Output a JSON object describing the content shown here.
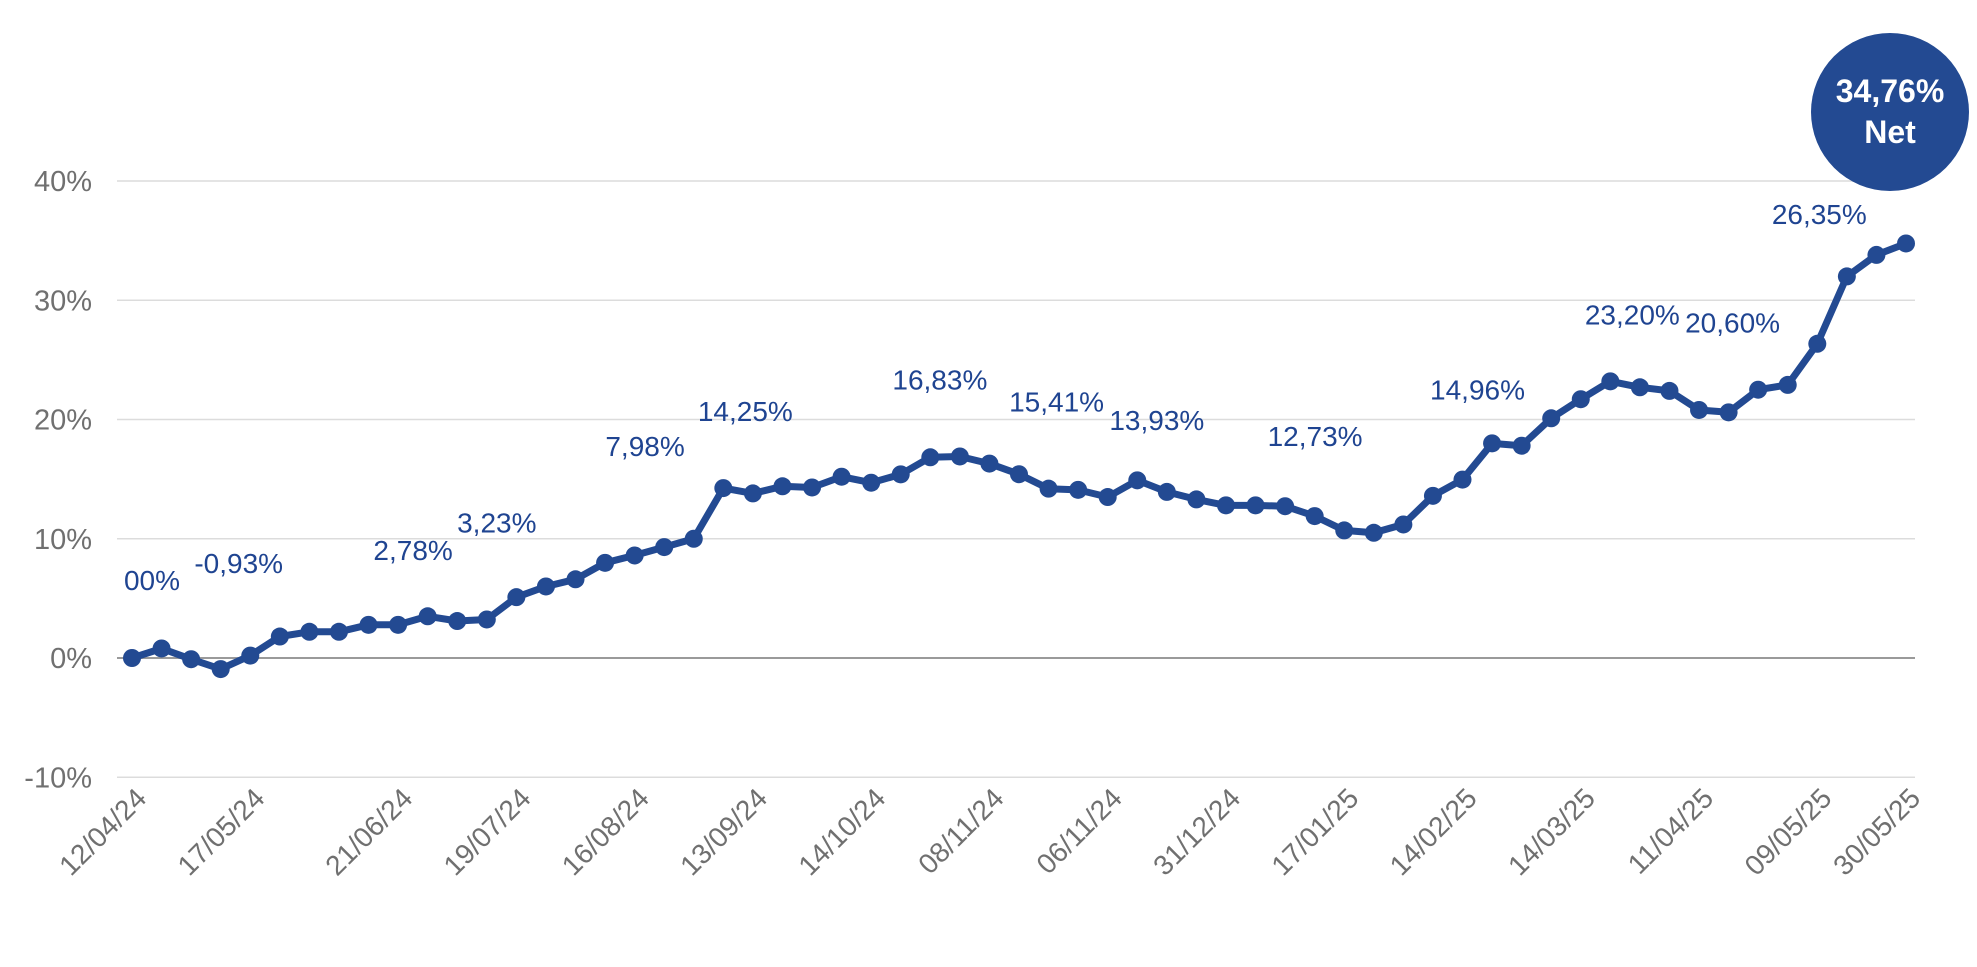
{
  "chart_data": {
    "type": "line",
    "ylim": [
      -10,
      40
    ],
    "y_ticks": [
      40,
      30,
      20,
      10,
      0,
      -10
    ],
    "y_tick_labels": [
      "40%",
      "30%",
      "20%",
      "10%",
      "0%",
      "-10%"
    ],
    "grid": true,
    "colors": {
      "line": "#234a92",
      "grid": "#dcdcdc",
      "zero_line": "#9a9a9a",
      "badge": "#234a92",
      "tick_text": "#707070",
      "label_text": "#1f4491"
    },
    "x_tick_labels": [
      {
        "i": 0,
        "label": "12/04/24"
      },
      {
        "i": 4,
        "label": "17/05/24"
      },
      {
        "i": 9,
        "label": "21/06/24"
      },
      {
        "i": 13,
        "label": "19/07/24"
      },
      {
        "i": 17,
        "label": "16/08/24"
      },
      {
        "i": 21,
        "label": "13/09/24"
      },
      {
        "i": 25,
        "label": "14/10/24"
      },
      {
        "i": 29,
        "label": "08/11/24"
      },
      {
        "i": 33,
        "label": "06/11/24"
      },
      {
        "i": 37,
        "label": "31/12/24"
      },
      {
        "i": 41,
        "label": "17/01/25"
      },
      {
        "i": 45,
        "label": "14/02/25"
      },
      {
        "i": 49,
        "label": "14/03/25"
      },
      {
        "i": 53,
        "label": "11/04/25"
      },
      {
        "i": 57,
        "label": "09/05/25"
      },
      {
        "i": 60,
        "label": "30/05/25"
      }
    ],
    "values": [
      0,
      0.8,
      -0.1,
      -0.93,
      0.2,
      1.8,
      2.2,
      2.2,
      2.78,
      2.78,
      3.5,
      3.1,
      3.23,
      5.1,
      6.0,
      6.6,
      7.98,
      8.6,
      9.3,
      10.0,
      14.25,
      13.8,
      14.4,
      14.3,
      15.2,
      14.7,
      15.4,
      16.83,
      16.9,
      16.3,
      15.41,
      14.2,
      14.1,
      13.5,
      14.9,
      13.93,
      13.3,
      12.8,
      12.8,
      12.73,
      11.9,
      10.7,
      10.5,
      11.2,
      13.6,
      14.96,
      18.0,
      17.8,
      20.1,
      21.7,
      23.2,
      22.7,
      22.4,
      20.8,
      20.6,
      22.5,
      22.9,
      26.35,
      32.0,
      33.8,
      34.76
    ],
    "data_labels": [
      {
        "text": "00%"
      },
      {
        "text": "-0,93%"
      },
      {
        "text": "2,78%"
      },
      {
        "text": "3,23%"
      },
      {
        "text": "7,98%"
      },
      {
        "text": "14,25%"
      },
      {
        "text": "16,83%"
      },
      {
        "text": "15,41%"
      },
      {
        "text": "13,93%"
      },
      {
        "text": "12,73%"
      },
      {
        "text": "14,96%"
      },
      {
        "text": "23,20%"
      },
      {
        "text": "20,60%"
      },
      {
        "text": "26,35%"
      }
    ],
    "badge": {
      "value": "34,76%",
      "label": "Net"
    }
  }
}
